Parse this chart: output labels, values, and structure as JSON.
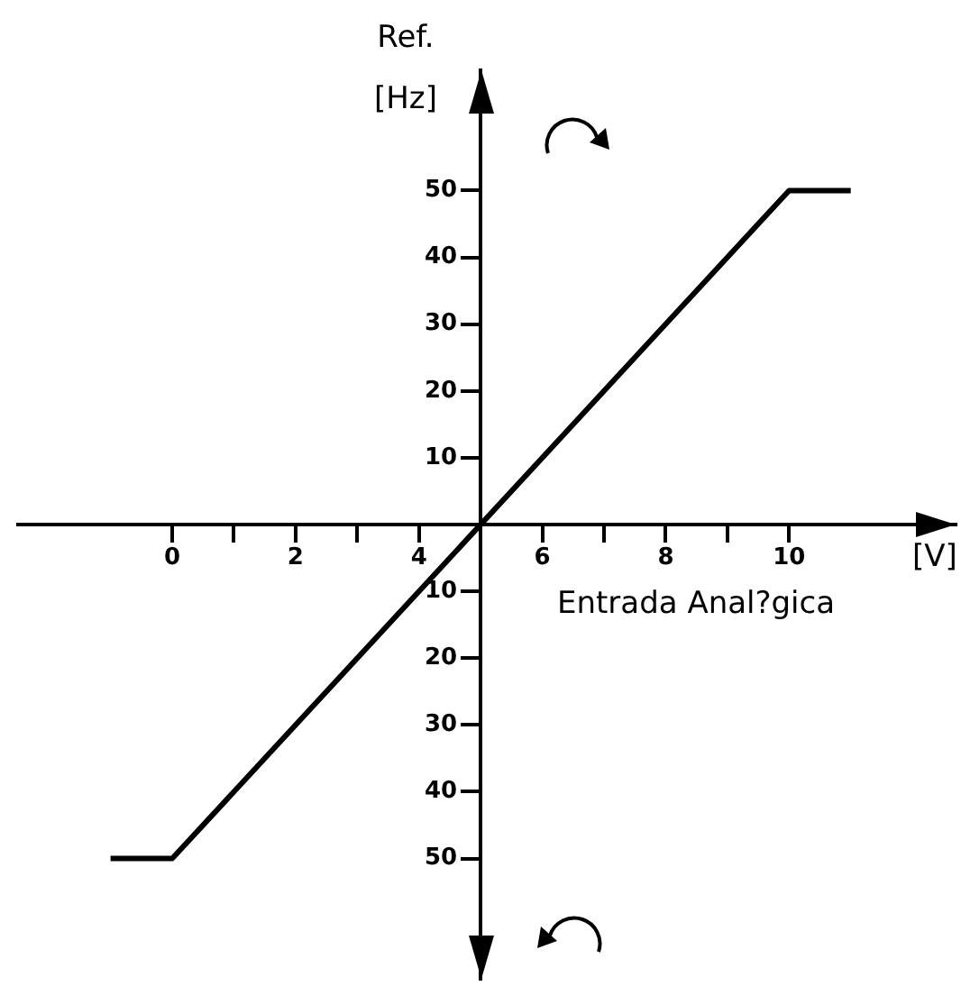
{
  "chart_data": {
    "type": "line",
    "xlabel": "Entrada Anal?gica",
    "ylabel": "Ref. [Hz]",
    "annotations": [
      "[V]"
    ],
    "x": [
      -1,
      0,
      10,
      11
    ],
    "series": [
      {
        "color": "#000000",
        "values": [
          -50,
          -50,
          50,
          50
        ]
      }
    ],
    "xlim": [
      -2.5,
      12.7
    ],
    "ylim": [
      -68,
      68
    ],
    "xticks": [
      0,
      {
        "value": 1,
        "label": null
      },
      2,
      {
        "value": 3,
        "label": null
      },
      4,
      {
        "value": 5,
        "label": null
      },
      6,
      {
        "value": 7,
        "label": null
      },
      8,
      {
        "value": 9,
        "label": null
      },
      10
    ],
    "yticks": [
      {
        "value": -50,
        "label": "50"
      },
      {
        "value": -40,
        "label": "40"
      },
      {
        "value": -30,
        "label": "30"
      },
      {
        "value": -20,
        "label": "20"
      },
      {
        "value": -10,
        "label": "10"
      },
      10,
      20,
      30,
      40,
      50
    ]
  }
}
